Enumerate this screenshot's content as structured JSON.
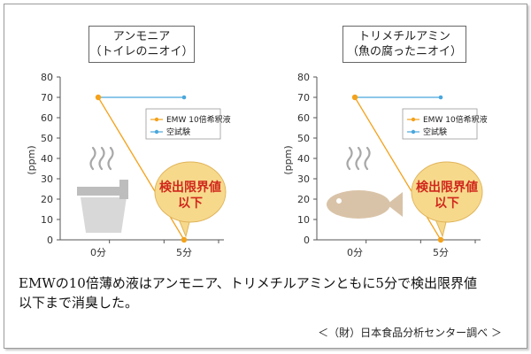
{
  "chart_data": [
    {
      "type": "line",
      "title": "アンモニア",
      "subtitle": "（トイレのニオイ）",
      "ylabel": "(ppm)",
      "ylim": [
        0,
        80
      ],
      "yticks": [
        0,
        10,
        20,
        30,
        40,
        50,
        60,
        70,
        80
      ],
      "categories": [
        "0分",
        "5分"
      ],
      "series": [
        {
          "name": "EMW 10倍希釈液",
          "values": [
            70,
            0
          ],
          "color": "#f4a21b"
        },
        {
          "name": "空試験",
          "values": [
            70,
            70
          ],
          "color": "#49a7dc"
        }
      ],
      "annotation": [
        "検出限界値",
        "以下"
      ],
      "icon": "toilet-icon",
      "grid": false,
      "legend": "top-right"
    },
    {
      "type": "line",
      "title": "トリメチルアミン",
      "subtitle": "（魚の腐ったニオイ）",
      "ylabel": "(ppm)",
      "ylim": [
        0,
        80
      ],
      "yticks": [
        0,
        10,
        20,
        30,
        40,
        50,
        60,
        70,
        80
      ],
      "categories": [
        "0分",
        "5分"
      ],
      "series": [
        {
          "name": "EMW 10倍希釈液",
          "values": [
            70,
            0
          ],
          "color": "#f4a21b"
        },
        {
          "name": "空試験",
          "values": [
            70,
            70
          ],
          "color": "#49a7dc"
        }
      ],
      "annotation": [
        "検出限界値",
        "以下"
      ],
      "icon": "fish-icon",
      "grid": false,
      "legend": "top-right"
    }
  ],
  "caption": {
    "line1": "EMWの10倍薄め液はアンモニア、トリメチルアミンともに5分で検出限界値",
    "line2": "以下まで消臭した。"
  },
  "source": "＜（財）日本食品分析センター調べ ＞",
  "colors": {
    "line_emw": "#f4a21b",
    "line_blank": "#49a7dc",
    "axis": "#555555",
    "bubble": "#f7d98c",
    "bubble_text": "#d0281c"
  }
}
